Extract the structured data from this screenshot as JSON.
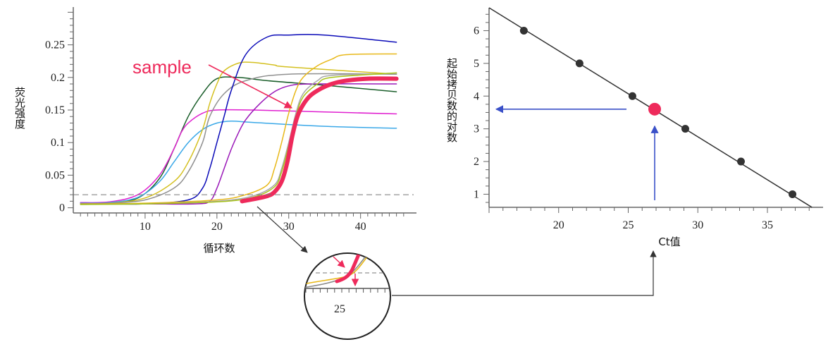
{
  "chart_data": [
    {
      "type": "line",
      "ylabel": "荧光强度",
      "xlabel": "循环数",
      "x_ticks": [
        10,
        20,
        30,
        40
      ],
      "y_ticks": [
        "0",
        "0.05",
        "0.1",
        "0.15",
        "0.2",
        "0.25"
      ],
      "xlim": [
        0,
        47
      ],
      "ylim": [
        -0.008,
        0.308
      ],
      "threshold": 0.02,
      "annotation": "sample",
      "series": [
        {
          "color": "#1a5e2a",
          "x": [
            1,
            5,
            9,
            12,
            14,
            16,
            18,
            20,
            23,
            27,
            35,
            45
          ],
          "y": [
            0.007,
            0.008,
            0.015,
            0.045,
            0.09,
            0.14,
            0.175,
            0.198,
            0.2,
            0.195,
            0.188,
            0.178
          ]
        },
        {
          "color": "#e020d0",
          "x": [
            1,
            5,
            9,
            12,
            14,
            15,
            16,
            18,
            20,
            25,
            35,
            45
          ],
          "y": [
            0.008,
            0.009,
            0.02,
            0.05,
            0.09,
            0.115,
            0.13,
            0.145,
            0.15,
            0.15,
            0.147,
            0.144
          ]
        },
        {
          "color": "#3aa8e8",
          "x": [
            1,
            5,
            9,
            12,
            14,
            16,
            18,
            20,
            22,
            25,
            35,
            45
          ],
          "y": [
            0.007,
            0.008,
            0.016,
            0.04,
            0.07,
            0.1,
            0.12,
            0.13,
            0.133,
            0.131,
            0.125,
            0.122
          ]
        },
        {
          "color": "#d4c020",
          "x": [
            1,
            5,
            10,
            14,
            16,
            18,
            19,
            20,
            21,
            23,
            25,
            28,
            30,
            45
          ],
          "y": [
            0.006,
            0.007,
            0.015,
            0.04,
            0.07,
            0.12,
            0.16,
            0.19,
            0.21,
            0.222,
            0.223,
            0.219,
            0.216,
            0.205
          ]
        },
        {
          "color": "#909090",
          "x": [
            1,
            5,
            10,
            14,
            16,
            18,
            19,
            21,
            24,
            30,
            45
          ],
          "y": [
            0.006,
            0.007,
            0.012,
            0.03,
            0.055,
            0.1,
            0.14,
            0.175,
            0.195,
            0.205,
            0.205
          ]
        },
        {
          "color": "#0a0ab8",
          "x": [
            1,
            5,
            10,
            16,
            18,
            19,
            20,
            21,
            22,
            24,
            27,
            30,
            35,
            45
          ],
          "y": [
            0.006,
            0.006,
            0.006,
            0.012,
            0.03,
            0.06,
            0.1,
            0.14,
            0.18,
            0.235,
            0.262,
            0.265,
            0.265,
            0.254
          ]
        },
        {
          "color": "#9a18b8",
          "x": [
            1,
            10,
            17,
            19,
            20,
            21,
            22,
            23,
            24,
            26,
            28,
            30,
            33,
            45
          ],
          "y": [
            0.006,
            0.006,
            0.006,
            0.01,
            0.03,
            0.06,
            0.09,
            0.115,
            0.135,
            0.16,
            0.178,
            0.187,
            0.19,
            0.19
          ]
        },
        {
          "color": "#e8b818",
          "x": [
            1,
            10,
            20,
            24,
            27,
            28,
            29,
            30,
            31,
            32,
            34,
            36,
            38,
            45
          ],
          "y": [
            0.006,
            0.007,
            0.012,
            0.02,
            0.035,
            0.06,
            0.1,
            0.145,
            0.18,
            0.2,
            0.218,
            0.228,
            0.235,
            0.236
          ]
        },
        {
          "color": "#a8a8a8",
          "x": [
            1,
            10,
            20,
            25,
            28,
            29,
            30,
            31,
            32,
            34,
            36,
            45
          ],
          "y": [
            0.005,
            0.006,
            0.01,
            0.018,
            0.035,
            0.06,
            0.1,
            0.145,
            0.175,
            0.195,
            0.203,
            0.206
          ]
        },
        {
          "color": "#a8c418",
          "x": [
            1,
            10,
            20,
            25,
            28,
            29,
            30,
            31,
            32,
            34,
            36,
            45
          ],
          "y": [
            0.005,
            0.006,
            0.009,
            0.016,
            0.032,
            0.055,
            0.095,
            0.14,
            0.17,
            0.19,
            0.2,
            0.207
          ]
        },
        {
          "name": "sample",
          "color": "#ee2a5b",
          "x": [
            23.5,
            25,
            27,
            28,
            29,
            29.8,
            30.5,
            31.2,
            32,
            33,
            34.5,
            36,
            38,
            41,
            45
          ],
          "y": [
            0.01,
            0.013,
            0.018,
            0.024,
            0.04,
            0.07,
            0.11,
            0.14,
            0.158,
            0.172,
            0.183,
            0.19,
            0.195,
            0.198,
            0.198
          ]
        }
      ]
    },
    {
      "type": "scatter",
      "xlabel": "Ct值",
      "ylabel": "起始拷贝数的对数",
      "x_ticks": [
        20,
        25,
        30,
        35
      ],
      "y_ticks": [
        1,
        2,
        3,
        4,
        5,
        6
      ],
      "xlim": [
        15,
        39
      ],
      "ylim": [
        0.6,
        6.7
      ],
      "line": {
        "x": [
          15,
          38.2
        ],
        "y": [
          6.7,
          0.6
        ]
      },
      "points": {
        "x": [
          17.5,
          21.5,
          25.3,
          29.1,
          33.1,
          36.8
        ],
        "y": [
          6,
          5,
          4,
          3,
          2,
          1
        ]
      },
      "sample_point": {
        "x": 26.9,
        "y": 3.6
      }
    }
  ],
  "inset": {
    "tick_label": "25"
  }
}
